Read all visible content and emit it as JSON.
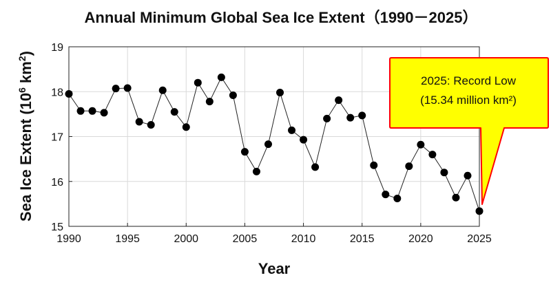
{
  "chart_data": {
    "type": "line",
    "title": "Annual Minimum Global Sea Ice Extent（1990－2025）",
    "xlabel": "Year",
    "ylabel_main": "Sea Ice Extent (10",
    "ylabel_sup": "6",
    "ylabel_unit": " km",
    "ylabel_sup2": "2",
    "ylabel_end": ")",
    "xlim": [
      1990,
      2025
    ],
    "ylim": [
      15,
      19
    ],
    "xticks": [
      1990,
      1995,
      2000,
      2005,
      2010,
      2015,
      2020,
      2025
    ],
    "yticks": [
      15,
      16,
      17,
      18,
      19
    ],
    "grid": true,
    "series": [
      {
        "x": [
          1990,
          1991,
          1992,
          1993,
          1994,
          1995,
          1996,
          1997,
          1998,
          1999,
          2000,
          2001,
          2002,
          2003,
          2004,
          2005,
          2006,
          2007,
          2008,
          2009,
          2010,
          2011,
          2012,
          2013,
          2014,
          2015,
          2016,
          2017,
          2018,
          2019,
          2020,
          2021,
          2022,
          2023,
          2024,
          2025
        ],
        "values": [
          17.95,
          17.57,
          17.57,
          17.53,
          18.07,
          18.08,
          17.33,
          17.26,
          18.03,
          17.55,
          17.21,
          18.2,
          17.78,
          18.32,
          17.92,
          16.66,
          16.22,
          16.83,
          17.98,
          17.14,
          16.93,
          16.32,
          17.4,
          17.81,
          17.42,
          17.47,
          16.36,
          15.71,
          15.62,
          16.34,
          16.82,
          16.6,
          16.2,
          15.64,
          16.13,
          15.34
        ],
        "color": "#000000"
      }
    ],
    "annotation": {
      "line1": "2025: Record Low",
      "line2": "(15.34 million km²)",
      "fill": "#ffff00",
      "border": "#ff0000",
      "target_x": 2025,
      "target_y": 15.34
    }
  }
}
